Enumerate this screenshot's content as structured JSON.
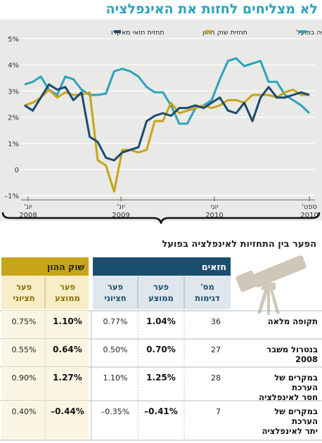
{
  "title": "לא מצליחים לחזות את האינפלציה",
  "subtitle": "הפער בין התחזיות לאינפלציה בפועל",
  "colors": {
    "title": "#2aa3bc",
    "macro": "#1a4a6e",
    "market": "#c8a418",
    "actual": "#2aa3bc",
    "table_navy": "#1c4e6e",
    "table_gold": "#c8a418"
  },
  "chart_data": {
    "type": "line",
    "title": "",
    "xlabel": "",
    "ylabel": "",
    "ylim": [
      -1,
      5
    ],
    "y_ticks": [
      "5%",
      "4%",
      "3%",
      "2%",
      "1%",
      "0",
      "–1%"
    ],
    "x_ticks": [
      {
        "top": "יונ'",
        "bottom": "2008"
      },
      {
        "top": "יונ'",
        "bottom": "2009"
      },
      {
        "top": "יוני",
        "bottom": "2010"
      },
      {
        "top": "ספט'",
        "bottom": "2010"
      }
    ],
    "x_range_months": [
      "2008-06",
      "2010-09"
    ],
    "legend": [
      {
        "key": "actual",
        "label": "האינפלציה בפועל"
      },
      {
        "key": "market",
        "label": "תחזית שוק ההון"
      },
      {
        "key": "macro",
        "label": "תחזית חזאי מאקרו"
      }
    ],
    "series": [
      {
        "key": "actual",
        "name": "האינפלציה בפועל",
        "values": [
          3.25,
          3.35,
          3.55,
          3.05,
          2.85,
          3.55,
          3.45,
          3.05,
          2.85,
          2.85,
          2.9,
          3.75,
          3.85,
          3.75,
          3.55,
          3.15,
          2.95,
          2.95,
          2.45,
          1.75,
          1.75,
          2.35,
          2.45,
          2.65,
          3.45,
          4.15,
          4.25,
          3.95,
          4.05,
          4.15,
          3.35,
          3.35,
          2.85,
          2.65,
          2.45,
          2.15
        ]
      },
      {
        "key": "market",
        "name": "תחזית שוק ההון",
        "values": [
          2.45,
          2.55,
          2.75,
          3.05,
          2.75,
          2.95,
          2.85,
          2.85,
          2.95,
          0.35,
          0.15,
          -0.85,
          0.75,
          0.75,
          0.65,
          0.75,
          1.85,
          1.85,
          2.55,
          2.15,
          2.25,
          2.35,
          2.45,
          2.35,
          2.45,
          2.65,
          2.65,
          2.55,
          2.85,
          2.85,
          2.85,
          2.75,
          2.95,
          3.05,
          2.85,
          2.85
        ]
      },
      {
        "key": "macro",
        "name": "תחזית חזאי מאקרו",
        "values": [
          2.45,
          2.25,
          2.75,
          3.25,
          3.05,
          3.15,
          2.65,
          2.95,
          1.25,
          1.05,
          0.45,
          0.35,
          0.65,
          0.75,
          0.85,
          1.85,
          2.05,
          2.15,
          2.05,
          2.35,
          2.35,
          2.45,
          2.35,
          2.55,
          2.75,
          2.25,
          2.15,
          2.55,
          1.85,
          2.75,
          3.15,
          2.75,
          2.75,
          2.85,
          2.95,
          2.85
        ]
      }
    ]
  },
  "table": {
    "group_market": "שוק ההון",
    "group_forecasters": "חזאים",
    "col_market_median": "פער חציוני",
    "col_market_mean": "פער ממוצע",
    "col_fc_median": "פער חציוני",
    "col_fc_mean": "פער ממוצע",
    "col_samples": "מס' דגימות",
    "rows": [
      {
        "label": "תקופה מלאה",
        "m_median": "0.75%",
        "m_mean": "1.10%",
        "f_median": "0.77%",
        "f_mean": "1.04%",
        "samples": "36"
      },
      {
        "label": "בנטרול משבר 2008",
        "m_median": "0.55%",
        "m_mean": "0.64%",
        "f_median": "0.50%",
        "f_mean": "0.70%",
        "samples": "27"
      },
      {
        "label": "במקרים של הערכת חסר לאינפלציה",
        "m_median": "0.90%",
        "m_mean": "1.27%",
        "f_median": "1.10%",
        "f_mean": "1.25%",
        "samples": "28"
      },
      {
        "label": "במקרים של הערכת יתר לאינפלציה",
        "m_median": "0.40%",
        "m_mean": "–0.44%",
        "f_median": "–0.35%",
        "f_mean": "–0.41%",
        "samples": "7"
      }
    ]
  }
}
